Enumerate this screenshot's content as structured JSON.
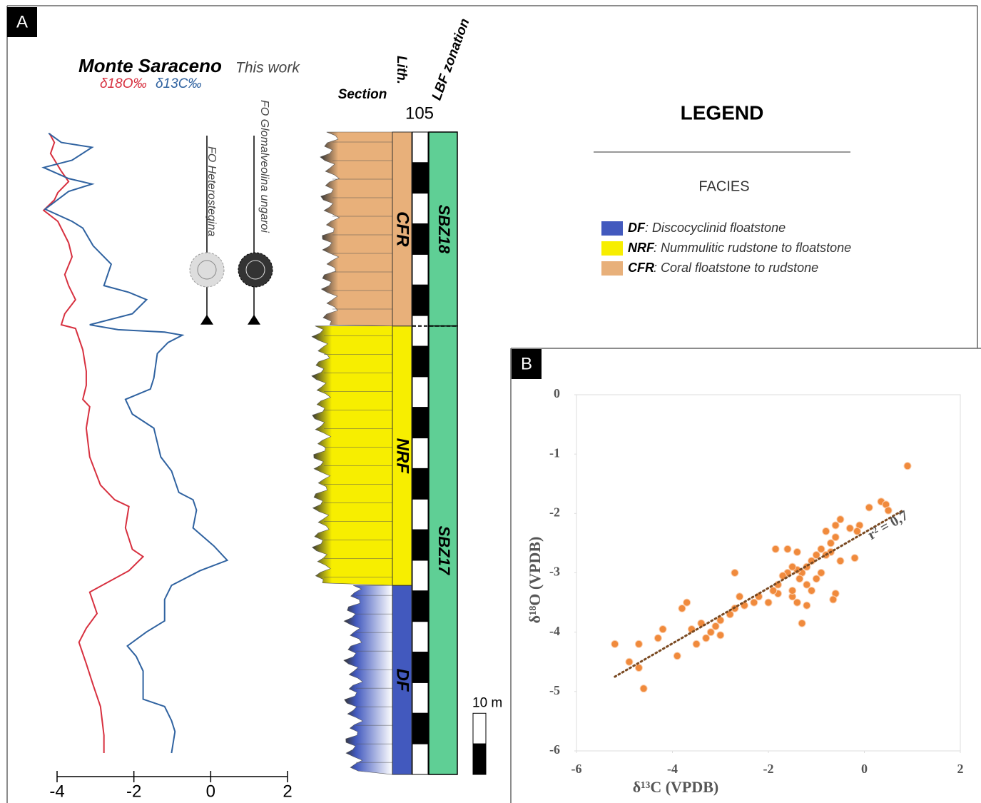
{
  "chart_data": [
    {
      "type": "line",
      "label": "A",
      "title": "Monte Saraceno",
      "subtitle": "This work",
      "xlim": [
        -4,
        2
      ],
      "xticks": [
        -4,
        -2,
        0,
        2
      ],
      "ylim": [
        0,
        105
      ],
      "series": [
        {
          "name": "δ18O‰",
          "color": "#d7303f",
          "values": [
            -4.2,
            -4.07,
            -4.17,
            -3.89,
            -3.7,
            -3.98,
            -4.07,
            -4.35,
            -3.98,
            -3.7,
            -3.61,
            -3.8,
            -3.7,
            -3.52,
            -3.8,
            -3.89,
            -3.52,
            -3.33,
            -3.24,
            -3.24,
            -3.33,
            -3.15,
            -3.24,
            -3.15,
            -2.87,
            -2.5,
            -2.13,
            -2.22,
            -2.04,
            -1.76,
            -2.13,
            -3.15,
            -2.96,
            -3.24,
            -3.43,
            -3.24,
            -3.06,
            -2.87,
            -2.78,
            -2.78
          ],
          "depth": [
            104.8,
            103.3,
            101.5,
            98.6,
            96.9,
            95.1,
            93.9,
            92.2,
            90.4,
            86.9,
            84.6,
            81.7,
            79.9,
            77.6,
            75.3,
            73.5,
            72.9,
            69.4,
            65.9,
            63.6,
            61.3,
            60.1,
            56.6,
            51.9,
            47.3,
            44.9,
            43.8,
            40.3,
            36.8,
            35.6,
            33.3,
            29.8,
            26.3,
            23.9,
            21.6,
            18.1,
            14.6,
            11.1,
            6.4,
            3.5
          ]
        },
        {
          "name": "δ13C‰",
          "color": "#2f62a0",
          "values": [
            -4.22,
            -3.89,
            -3.09,
            -3.61,
            -4.35,
            -3.7,
            -3.09,
            -3.7,
            -4.31,
            -3.61,
            -3.33,
            -3.06,
            -2.59,
            -2.78,
            -2.13,
            -1.67,
            -2.04,
            -3.15,
            -2.41,
            -1.2,
            -0.74,
            -1.11,
            -1.39,
            -1.48,
            -1.57,
            -2.22,
            -2.04,
            -1.48,
            -1.3,
            -1.02,
            -0.83,
            -0.46,
            -0.37,
            -0.46,
            0.09,
            0.43,
            -0.28,
            -1.02,
            -1.2,
            -1.2,
            -1.67,
            -2.17,
            -1.94,
            -1.76,
            -1.76,
            -1.2,
            -1.02,
            -0.93,
            -1.02
          ],
          "depth": [
            104.8,
            103.3,
            102.5,
            100.4,
            99.2,
            97.4,
            96.5,
            95.3,
            92.4,
            90.4,
            89.3,
            86.4,
            83.4,
            79.9,
            78.8,
            77.6,
            75.3,
            73.5,
            72.7,
            72.3,
            71.8,
            70.6,
            68.8,
            64.8,
            63,
            61.3,
            58.9,
            56.6,
            51.9,
            49.6,
            46.1,
            44.9,
            43.2,
            40.3,
            37.3,
            35,
            33.3,
            30.9,
            28.6,
            25.1,
            23.3,
            21,
            19.3,
            16.9,
            12.3,
            11.1,
            8.8,
            7,
            3.5
          ]
        }
      ],
      "columns": [
        "Section",
        "Lith.",
        "LBF zonation"
      ],
      "markers": [
        {
          "label": "FO Heterostegina",
          "depth": 74
        },
        {
          "label": "FO Glomalveolina ungaroi",
          "depth": 74
        }
      ],
      "legend_title": "LEGEND",
      "facies_title": "FACIES",
      "facies": [
        {
          "code": "DF",
          "description": ": Discocyclinid  floatstone",
          "color": "#4259be",
          "top": 30.9,
          "base": 0
        },
        {
          "code": "NRF",
          "description": ": Nummulitic rudstone to floatstone",
          "color": "#f7ee00",
          "top": 73.3,
          "base": 30.9
        },
        {
          "code": "CFR",
          "description": ": Coral  floatstone to rudstone",
          "color": "#e8b07a",
          "top": 105,
          "base": 73.3
        }
      ],
      "zones": [
        {
          "name": "SBZ18",
          "top": 105,
          "base": 73.3
        },
        {
          "name": "SBZ17",
          "top": 73.3,
          "base": 0
        }
      ],
      "zone_color": "#5fcf95",
      "scale_bar": {
        "value": 10,
        "label": "10 m"
      }
    },
    {
      "type": "scatter",
      "label": "B",
      "xlabel": "δ¹³C (VPDB)",
      "ylabel": "δ¹⁸O (VPDB)",
      "xlim": [
        -6,
        2
      ],
      "xticks": [
        -6,
        -4,
        -2,
        0,
        2
      ],
      "ylim": [
        -6,
        0
      ],
      "yticks": [
        0,
        -1,
        -2,
        -3,
        -4,
        -5,
        -6
      ],
      "color": "#f08a3c",
      "x": [
        0.9,
        0.1,
        0.35,
        0.45,
        0.5,
        -0.1,
        -0.15,
        -0.3,
        -0.5,
        -0.6,
        -0.6,
        -0.7,
        -0.7,
        -0.8,
        -0.9,
        -0.8,
        -1.0,
        -1.1,
        -1.2,
        -1.3,
        -1.4,
        -1.35,
        -1.5,
        -1.6,
        -1.7,
        -1.8,
        -1.8,
        -1.9,
        -1.6,
        -1.4,
        -1.2,
        -1.0,
        -0.9,
        -0.2,
        -0.5,
        -0.6,
        -0.65,
        -1.2,
        -1.4,
        -1.5,
        -1.3,
        -2.0,
        -2.2,
        -2.5,
        -2.6,
        -2.7,
        -2.8,
        -2.7,
        -3.0,
        -3.1,
        -3.2,
        -3.0,
        -3.4,
        -3.3,
        -3.5,
        -3.8,
        -3.7,
        -3.9,
        -4.2,
        -4.3,
        -4.7,
        -4.7,
        -4.9,
        -4.6,
        -5.2,
        -1.85,
        -1.5,
        -1.1,
        -2.3,
        -3.6
      ],
      "values": [
        -1.2,
        -1.9,
        -1.8,
        -1.85,
        -1.95,
        -2.2,
        -2.3,
        -2.25,
        -2.1,
        -2.2,
        -2.4,
        -2.5,
        -2.65,
        -2.7,
        -2.6,
        -2.3,
        -2.7,
        -2.8,
        -2.9,
        -3.0,
        -2.95,
        -3.1,
        -2.9,
        -3.0,
        -3.05,
        -3.2,
        -3.35,
        -3.3,
        -2.6,
        -2.65,
        -3.2,
        -3.1,
        -3.0,
        -2.75,
        -2.8,
        -3.35,
        -3.45,
        -3.55,
        -3.5,
        -3.4,
        -3.85,
        -3.5,
        -3.4,
        -3.55,
        -3.4,
        -3.6,
        -3.7,
        -3.0,
        -3.8,
        -3.9,
        -4.0,
        -4.05,
        -3.85,
        -4.1,
        -4.2,
        -3.6,
        -3.5,
        -4.4,
        -3.95,
        -4.1,
        -4.2,
        -4.6,
        -4.5,
        -4.95,
        -4.2,
        -2.6,
        -3.3,
        -3.3,
        -3.5,
        -3.95
      ],
      "trendline": {
        "label": "r² = 0,7",
        "color": "#7a4a22",
        "x": [
          -5.2,
          0.8
        ],
        "values": [
          -4.75,
          -1.95
        ]
      }
    }
  ]
}
